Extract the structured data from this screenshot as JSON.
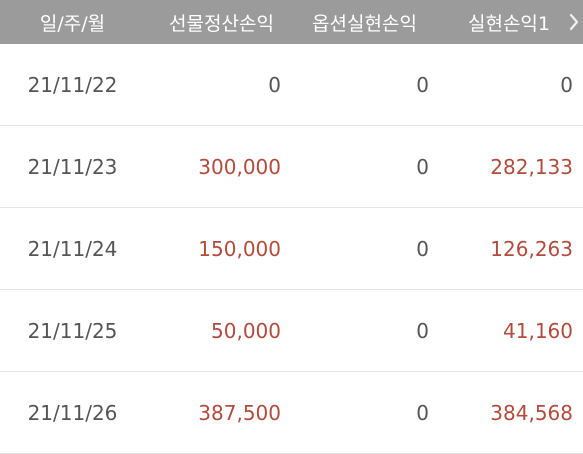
{
  "header": {
    "columns": [
      "일/주/월",
      "선물정산손익",
      "옵션실현손익",
      "실현손익1"
    ],
    "scroll_icon": "chevron-right-icon"
  },
  "rows": [
    {
      "date": "21/11/22",
      "futures": "0",
      "options": "0",
      "realized": "0",
      "futures_positive": false,
      "realized_positive": false
    },
    {
      "date": "21/11/23",
      "futures": "300,000",
      "options": "0",
      "realized": "282,133",
      "futures_positive": true,
      "realized_positive": true
    },
    {
      "date": "21/11/24",
      "futures": "150,000",
      "options": "0",
      "realized": "126,263",
      "futures_positive": true,
      "realized_positive": true
    },
    {
      "date": "21/11/25",
      "futures": "50,000",
      "options": "0",
      "realized": "41,160",
      "futures_positive": true,
      "realized_positive": true
    },
    {
      "date": "21/11/26",
      "futures": "387,500",
      "options": "0",
      "realized": "384,568",
      "futures_positive": true,
      "realized_positive": true
    }
  ],
  "colors": {
    "header_bg": "#9b9b9b",
    "positive": "#b24b3c",
    "neutral": "#555555"
  }
}
